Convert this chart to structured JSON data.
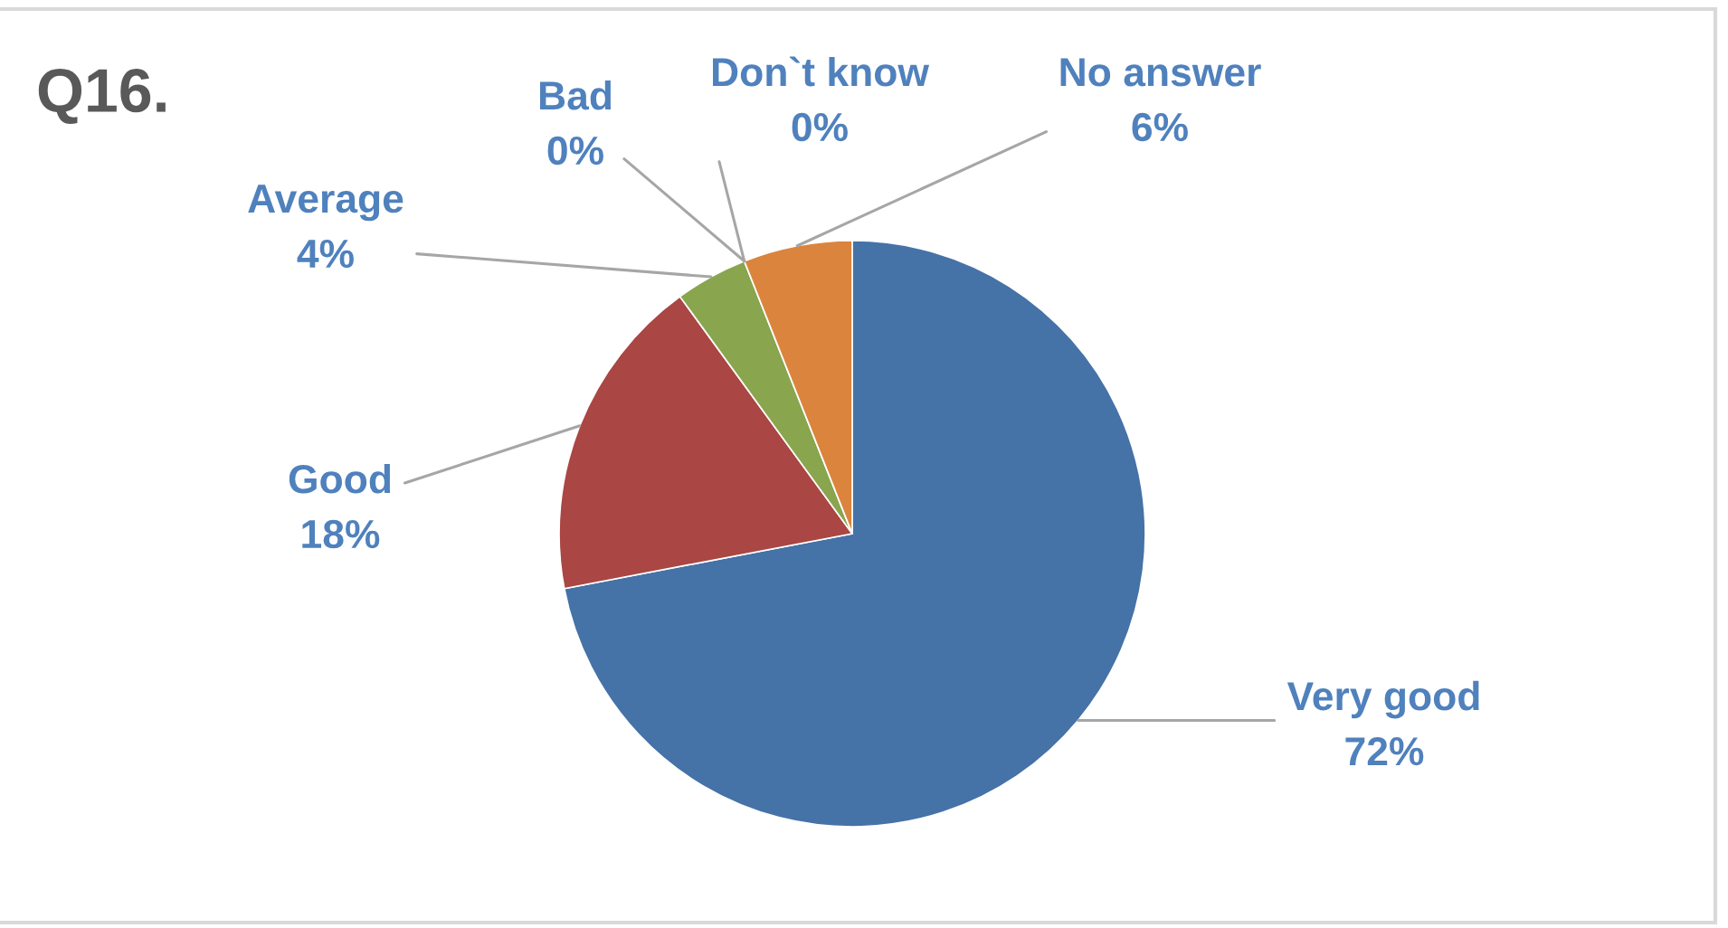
{
  "chart_data": {
    "type": "pie",
    "title": "Q16.",
    "categories": [
      "Very good",
      "Good",
      "Average",
      "Bad",
      "Don`t know",
      "No answer"
    ],
    "values": [
      72,
      18,
      4,
      0,
      0,
      6
    ],
    "value_labels": [
      "72%",
      "18%",
      "4%",
      "0%",
      "0%",
      "6%"
    ],
    "colors": [
      "#4572a7",
      "#aa4643",
      "#89a54e",
      "#71588f",
      "#4198af",
      "#db843d"
    ]
  }
}
